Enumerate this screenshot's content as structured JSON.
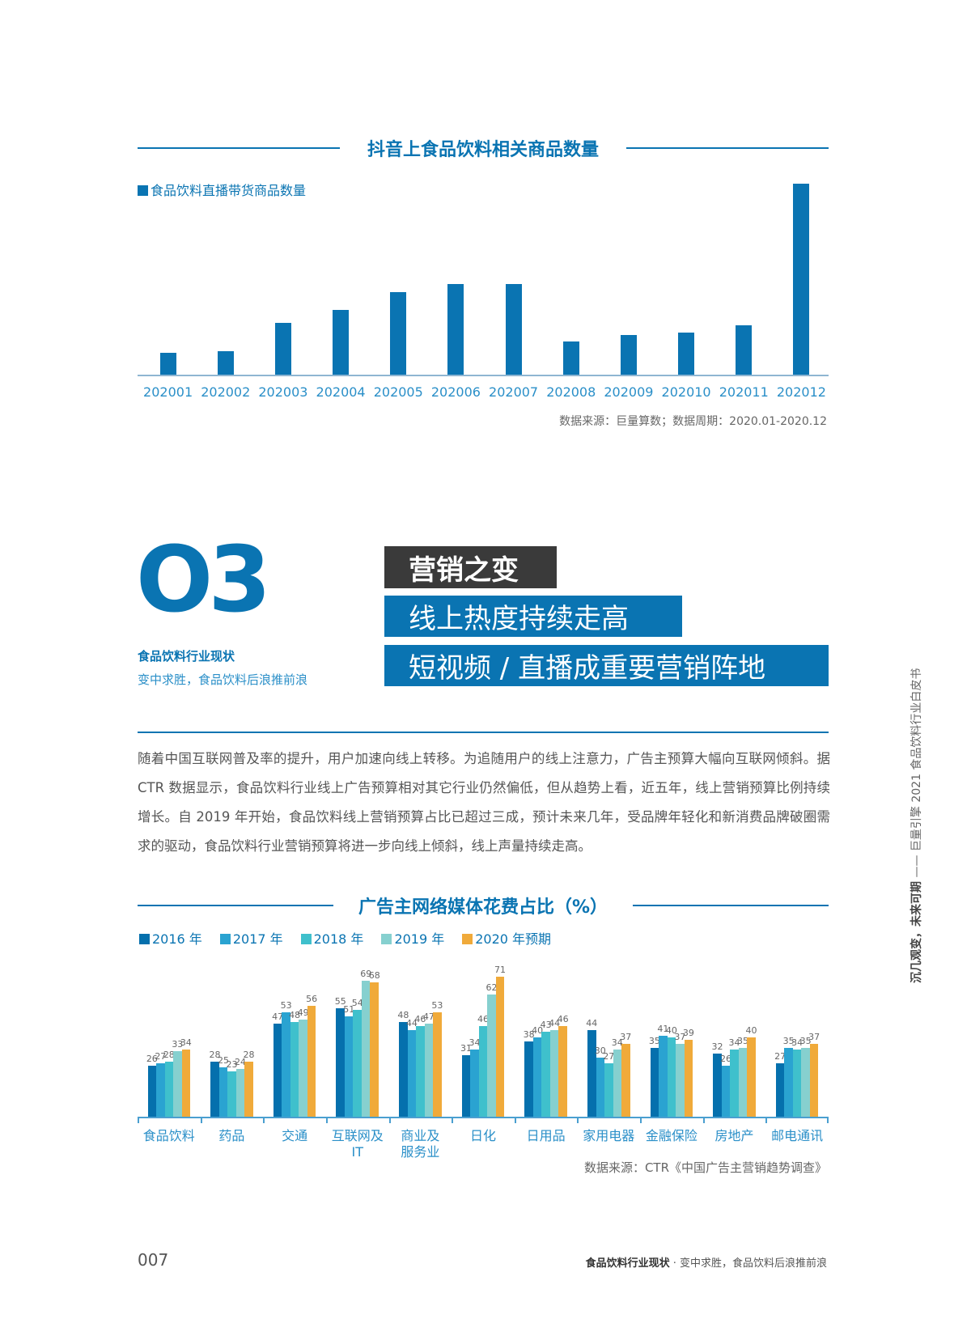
{
  "chart_data": [
    {
      "type": "bar",
      "title": "抖音上食品饮料相关商品数量",
      "legend": [
        "食品饮料直播带货商品数量"
      ],
      "categories": [
        "202001",
        "202002",
        "202003",
        "202004",
        "202005",
        "202006",
        "202007",
        "202008",
        "202009",
        "202010",
        "202011",
        "202012"
      ],
      "series": [
        {
          "name": "食品饮料直播带货商品数量",
          "values": [
            26,
            28,
            62,
            77,
            99,
            108,
            108,
            40,
            47,
            50,
            59,
            228
          ]
        }
      ],
      "value_note": "",
      "color": "#0a74b2",
      "source": "数据来源：巨量算数；数据周期：2020.01-2020.12"
    },
    {
      "type": "bar",
      "title": "广告主网络媒体花费占比（%）",
      "categories": [
        "食品饮料",
        "药品",
        "交通",
        "互联网及IT",
        "商业及服务业",
        "日化",
        "日用品",
        "家用电器",
        "金融保险",
        "房地产",
        "邮电通讯"
      ],
      "category_display": [
        "食品饮料",
        "药品",
        "交通",
        "互联网及IT",
        "商业及\n服务业",
        "日化",
        "日用品",
        "家用电器",
        "金融保险",
        "房地产",
        "邮电通讯"
      ],
      "series": [
        {
          "name": "2016 年",
          "color": "#0570ad",
          "values": [
            26,
            28,
            47,
            55,
            48,
            31,
            38,
            44,
            35,
            32,
            27
          ]
        },
        {
          "name": "2017 年",
          "color": "#2aa3d1",
          "values": [
            27,
            25,
            53,
            51,
            44,
            34,
            40,
            30,
            41,
            26,
            35
          ]
        },
        {
          "name": "2018 年",
          "color": "#3fc0cc",
          "values": [
            28,
            23,
            48,
            54,
            46,
            46,
            43,
            27,
            40,
            34,
            34
          ]
        },
        {
          "name": "2019 年",
          "color": "#86d0cf",
          "values": [
            33,
            24,
            49,
            69,
            47,
            62,
            44,
            34,
            37,
            35,
            35
          ]
        },
        {
          "name": "2020 年预期",
          "color": "#f0aa3a",
          "values": [
            34,
            28,
            56,
            68,
            53,
            71,
            46,
            37,
            39,
            40,
            37
          ]
        }
      ],
      "ylim": [
        0,
        75
      ],
      "grid": false,
      "legend_position": "top-left",
      "source": "数据来源：CTR《中国广告主营销趋势调查》"
    }
  ],
  "section": {
    "number": "O3",
    "subtitle_bold": "食品饮料行业现状",
    "subtitle": "变中求胜，食品饮料后浪推前浪",
    "tag": "营销之变",
    "headline1": "线上热度持续走高",
    "headline2": "短视频 / 直播成重要营销阵地"
  },
  "paragraph": "随着中国互联网普及率的提升，用户加速向线上转移。为追随用户的线上注意力，广告主预算大幅向互联网倾斜。据 CTR 数据显示，食品饮料行业线上广告预算相对其它行业仍然偏低，但从趋势上看，近五年，线上营销预算比例持续增长。自 2019 年开始，食品饮料线上营销预算占比已超过三成，预计未来几年，受品牌年轻化和新消费品牌破圈需求的驱动，食品饮料行业营销预算将进一步向线上倾斜，线上声量持续走高。",
  "side": {
    "bold": "沉几观变，未来可期",
    "rest": " —— 巨量引擎 2021 食品饮料行业白皮书"
  },
  "footer": {
    "page": "007",
    "bold": "食品饮料行业现状",
    "rest": " · 变中求胜，食品饮料后浪推前浪"
  },
  "colors": {
    "brand": "#0a74b2",
    "dark": "#3a3a3a"
  }
}
